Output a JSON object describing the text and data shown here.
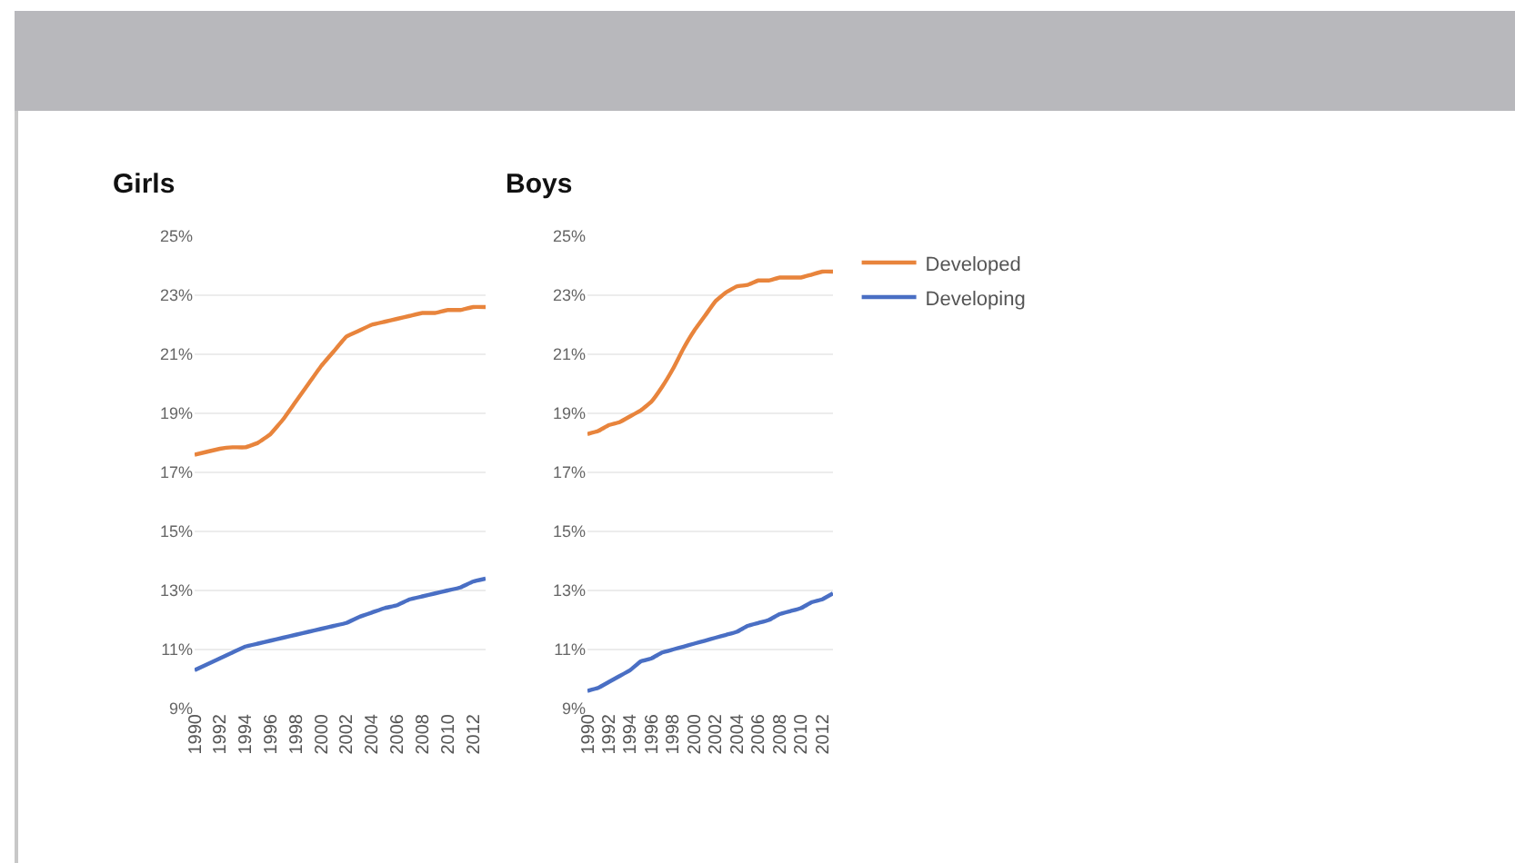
{
  "chart_data": [
    {
      "type": "line",
      "title": "Girls",
      "x": [
        1990,
        1991,
        1992,
        1993,
        1994,
        1995,
        1996,
        1997,
        1998,
        1999,
        2000,
        2001,
        2002,
        2003,
        2004,
        2005,
        2006,
        2007,
        2008,
        2009,
        2010,
        2011,
        2012,
        2013
      ],
      "series": [
        {
          "color": "#e8843c",
          "values": [
            17.6,
            17.7,
            17.8,
            17.85,
            17.85,
            18.0,
            18.3,
            18.8,
            19.4,
            20.0,
            20.6,
            21.1,
            21.6,
            21.8,
            22.0,
            22.1,
            22.2,
            22.3,
            22.4,
            22.4,
            22.5,
            22.5,
            22.6,
            22.6
          ]
        },
        {
          "color": "#4a6fc4",
          "values": [
            10.3,
            10.5,
            10.7,
            10.9,
            11.1,
            11.2,
            11.3,
            11.4,
            11.5,
            11.6,
            11.7,
            11.8,
            11.9,
            12.1,
            12.25,
            12.4,
            12.5,
            12.7,
            12.8,
            12.9,
            13.0,
            13.1,
            13.3,
            13.4
          ]
        }
      ],
      "xlim": [
        1990,
        2013
      ],
      "xticks": [
        1990,
        1992,
        1994,
        1996,
        1998,
        2000,
        2002,
        2004,
        2006,
        2008,
        2010,
        2012
      ],
      "ylim": [
        9,
        25
      ],
      "yticks": [
        {
          "value": 9,
          "label": "9%"
        },
        {
          "value": 11,
          "label": "11%"
        },
        {
          "value": 13,
          "label": "13%"
        },
        {
          "value": 15,
          "label": "15%"
        },
        {
          "value": 17,
          "label": "17%"
        },
        {
          "value": 19,
          "label": "19%"
        },
        {
          "value": 21,
          "label": "21%"
        },
        {
          "value": 23,
          "label": "23%"
        },
        {
          "value": 25,
          "label": "25%"
        }
      ],
      "grid": "y",
      "legend": false,
      "marker": "none",
      "line_style": "solid"
    },
    {
      "type": "line",
      "title": "Boys",
      "x": [
        1990,
        1991,
        1992,
        1993,
        1994,
        1995,
        1996,
        1997,
        1998,
        1999,
        2000,
        2001,
        2002,
        2003,
        2004,
        2005,
        2006,
        2007,
        2008,
        2009,
        2010,
        2011,
        2012,
        2013
      ],
      "series": [
        {
          "name": "Developed",
          "color": "#e8843c",
          "values": [
            18.3,
            18.4,
            18.6,
            18.7,
            18.9,
            19.1,
            19.4,
            19.9,
            20.5,
            21.2,
            21.8,
            22.3,
            22.8,
            23.1,
            23.3,
            23.35,
            23.5,
            23.5,
            23.6,
            23.6,
            23.6,
            23.7,
            23.8,
            23.8
          ]
        },
        {
          "name": "Developing",
          "color": "#4a6fc4",
          "values": [
            9.6,
            9.7,
            9.9,
            10.1,
            10.3,
            10.6,
            10.7,
            10.9,
            11.0,
            11.1,
            11.2,
            11.3,
            11.4,
            11.5,
            11.6,
            11.8,
            11.9,
            12.0,
            12.2,
            12.3,
            12.4,
            12.6,
            12.7,
            12.9
          ]
        }
      ],
      "xlim": [
        1990,
        2013
      ],
      "xticks": [
        1990,
        1992,
        1994,
        1996,
        1998,
        2000,
        2002,
        2004,
        2006,
        2008,
        2010,
        2012
      ],
      "ylim": [
        9,
        25
      ],
      "yticks": [
        {
          "value": 9,
          "label": "9%"
        },
        {
          "value": 11,
          "label": "11%"
        },
        {
          "value": 13,
          "label": "13%"
        },
        {
          "value": 15,
          "label": "15%"
        },
        {
          "value": 17,
          "label": "17%"
        },
        {
          "value": 19,
          "label": "19%"
        },
        {
          "value": 21,
          "label": "21%"
        },
        {
          "value": 23,
          "label": "23%"
        },
        {
          "value": 25,
          "label": "25%"
        }
      ],
      "grid": "y",
      "legend": "top right",
      "marker": "none",
      "line_style": "solid"
    }
  ]
}
